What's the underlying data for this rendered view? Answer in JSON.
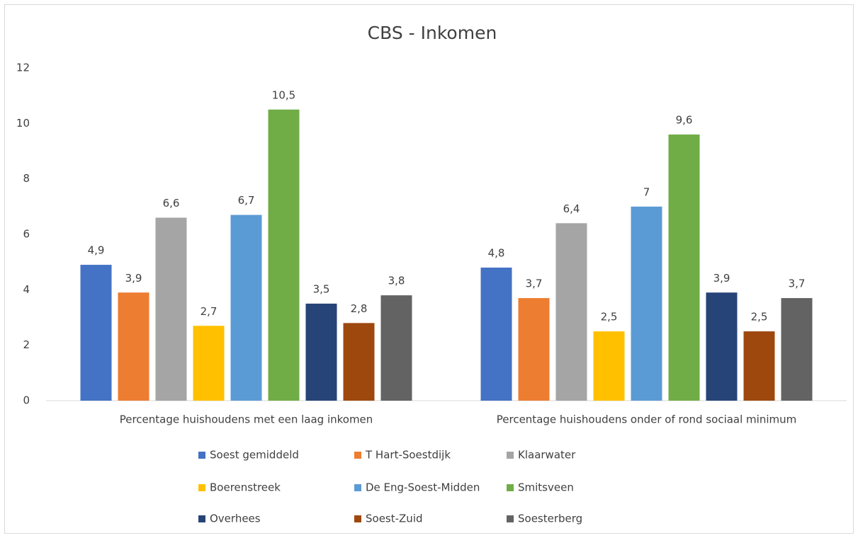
{
  "chart_data": {
    "type": "bar",
    "title": "CBS - Inkomen",
    "categories": [
      "Percentage huishoudens met een laag inkomen",
      "Percentage huishoudens onder of rond sociaal minimum"
    ],
    "series": [
      {
        "name": "Soest gemiddeld",
        "color": "#4472c4",
        "values": [
          4.9,
          4.8
        ],
        "value_labels": [
          "4,9",
          "4,8"
        ]
      },
      {
        "name": "T Hart-Soestdijk",
        "color": "#ed7d31",
        "values": [
          3.9,
          3.7
        ],
        "value_labels": [
          "3,9",
          "3,7"
        ]
      },
      {
        "name": "Klaarwater",
        "color": "#a5a5a5",
        "values": [
          6.6,
          6.4
        ],
        "value_labels": [
          "6,6",
          "6,4"
        ]
      },
      {
        "name": "Boerenstreek",
        "color": "#ffc000",
        "values": [
          2.7,
          2.5
        ],
        "value_labels": [
          "2,7",
          "2,5"
        ]
      },
      {
        "name": "De Eng-Soest-Midden",
        "color": "#5b9bd5",
        "values": [
          6.7,
          7
        ],
        "value_labels": [
          "6,7",
          "7"
        ]
      },
      {
        "name": "Smitsveen",
        "color": "#70ad47",
        "values": [
          10.5,
          9.6
        ],
        "value_labels": [
          "10,5",
          "9,6"
        ]
      },
      {
        "name": "Overhees",
        "color": "#264478",
        "values": [
          3.5,
          3.9
        ],
        "value_labels": [
          "3,5",
          "3,9"
        ]
      },
      {
        "name": "Soest-Zuid",
        "color": "#9e480e",
        "values": [
          2.8,
          2.5
        ],
        "value_labels": [
          "2,8",
          "2,5"
        ]
      },
      {
        "name": "Soesterberg",
        "color": "#636363",
        "values": [
          3.8,
          3.7
        ],
        "value_labels": [
          "3,8",
          "3,7"
        ]
      }
    ],
    "ylim": [
      0,
      12
    ],
    "yticks": [
      0,
      2,
      4,
      6,
      8,
      10,
      12
    ],
    "grid": false,
    "legend": "bottom"
  }
}
